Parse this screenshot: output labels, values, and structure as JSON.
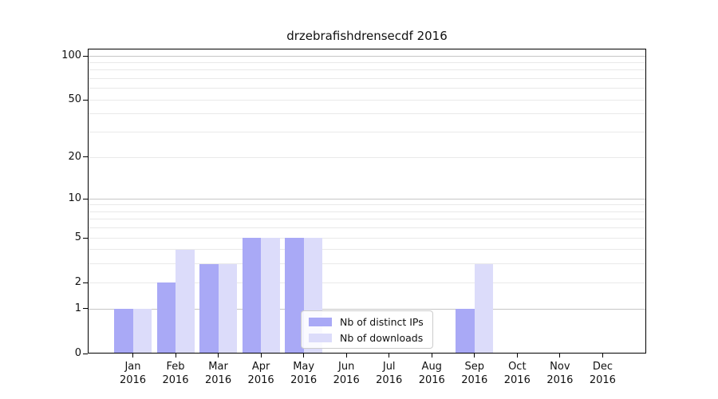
{
  "title": "drzebrafishdrensecdf 2016",
  "chart_data": {
    "type": "bar",
    "title": "drzebrafishdrensecdf 2016",
    "categories": [
      "Jan",
      "Feb",
      "Mar",
      "Apr",
      "May",
      "Jun",
      "Jul",
      "Aug",
      "Sep",
      "Oct",
      "Nov",
      "Dec"
    ],
    "year": "2016",
    "series": [
      {
        "name": "Nb of distinct IPs",
        "color": "#a9a9f6",
        "values": [
          1,
          2,
          3,
          5,
          5,
          0,
          0,
          0,
          1,
          0,
          0,
          0
        ]
      },
      {
        "name": "Nb of downloads",
        "color": "#dcdcfa",
        "values": [
          1,
          4,
          3,
          5,
          5,
          0,
          0,
          0,
          3,
          0,
          0,
          0
        ]
      }
    ],
    "yscale": "log1p",
    "ylim": [
      0,
      112
    ],
    "ytick_labels": [
      0,
      1,
      2,
      5,
      10,
      20,
      50,
      100
    ],
    "grid_major": [
      1,
      10,
      100
    ],
    "grid_minor": [
      2,
      3,
      4,
      5,
      6,
      7,
      8,
      9,
      20,
      30,
      40,
      50,
      60,
      70,
      80,
      90
    ],
    "grid": "on",
    "legend_position": "lower center",
    "xlabel": "",
    "ylabel": ""
  },
  "colors": {
    "grid_major": "#c6c6c6",
    "grid_minor": "#e9e9e9",
    "spine": "#000000",
    "background": "#ffffff"
  }
}
